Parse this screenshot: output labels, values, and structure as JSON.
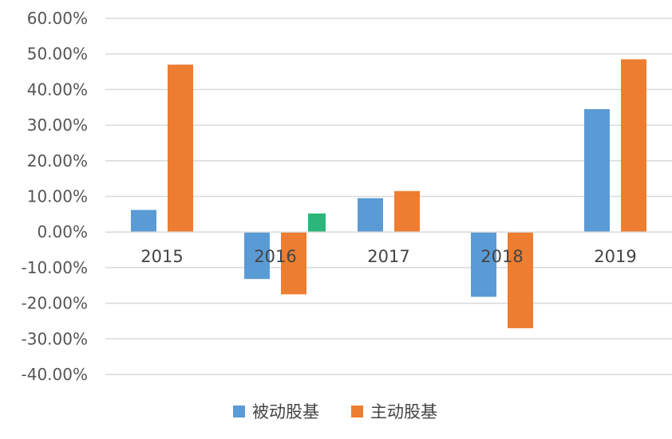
{
  "chart_data": {
    "type": "bar",
    "categories": [
      "2015",
      "2016",
      "2017",
      "2018",
      "2019"
    ],
    "series": [
      {
        "name": "被动股基",
        "color": "#5B9BD5",
        "values": [
          6.2,
          -13.2,
          9.5,
          -18.2,
          34.5
        ]
      },
      {
        "name": "主动股基",
        "color": "#ED7D31",
        "values": [
          47.0,
          -17.5,
          11.5,
          -27.0,
          48.5
        ]
      }
    ],
    "extra_bars": [
      {
        "category": "2016",
        "value": 5.2,
        "color": "#2DB67A"
      }
    ],
    "ylim": [
      -40,
      60
    ],
    "yticks": [
      {
        "value": 60,
        "label": "60.00%"
      },
      {
        "value": 50,
        "label": "50.00%"
      },
      {
        "value": 40,
        "label": "40.00%"
      },
      {
        "value": 30,
        "label": "30.00%"
      },
      {
        "value": 20,
        "label": "20.00%"
      },
      {
        "value": 10,
        "label": "10.00%"
      },
      {
        "value": 0,
        "label": "0.00%"
      },
      {
        "value": -10,
        "label": "-10.00%"
      },
      {
        "value": -20,
        "label": "-20.00%"
      },
      {
        "value": -30,
        "label": "-30.00%"
      },
      {
        "value": -40,
        "label": "-40.00%"
      }
    ],
    "grid": true,
    "legend_position": "bottom",
    "title": "",
    "xlabel": "",
    "ylabel": ""
  }
}
